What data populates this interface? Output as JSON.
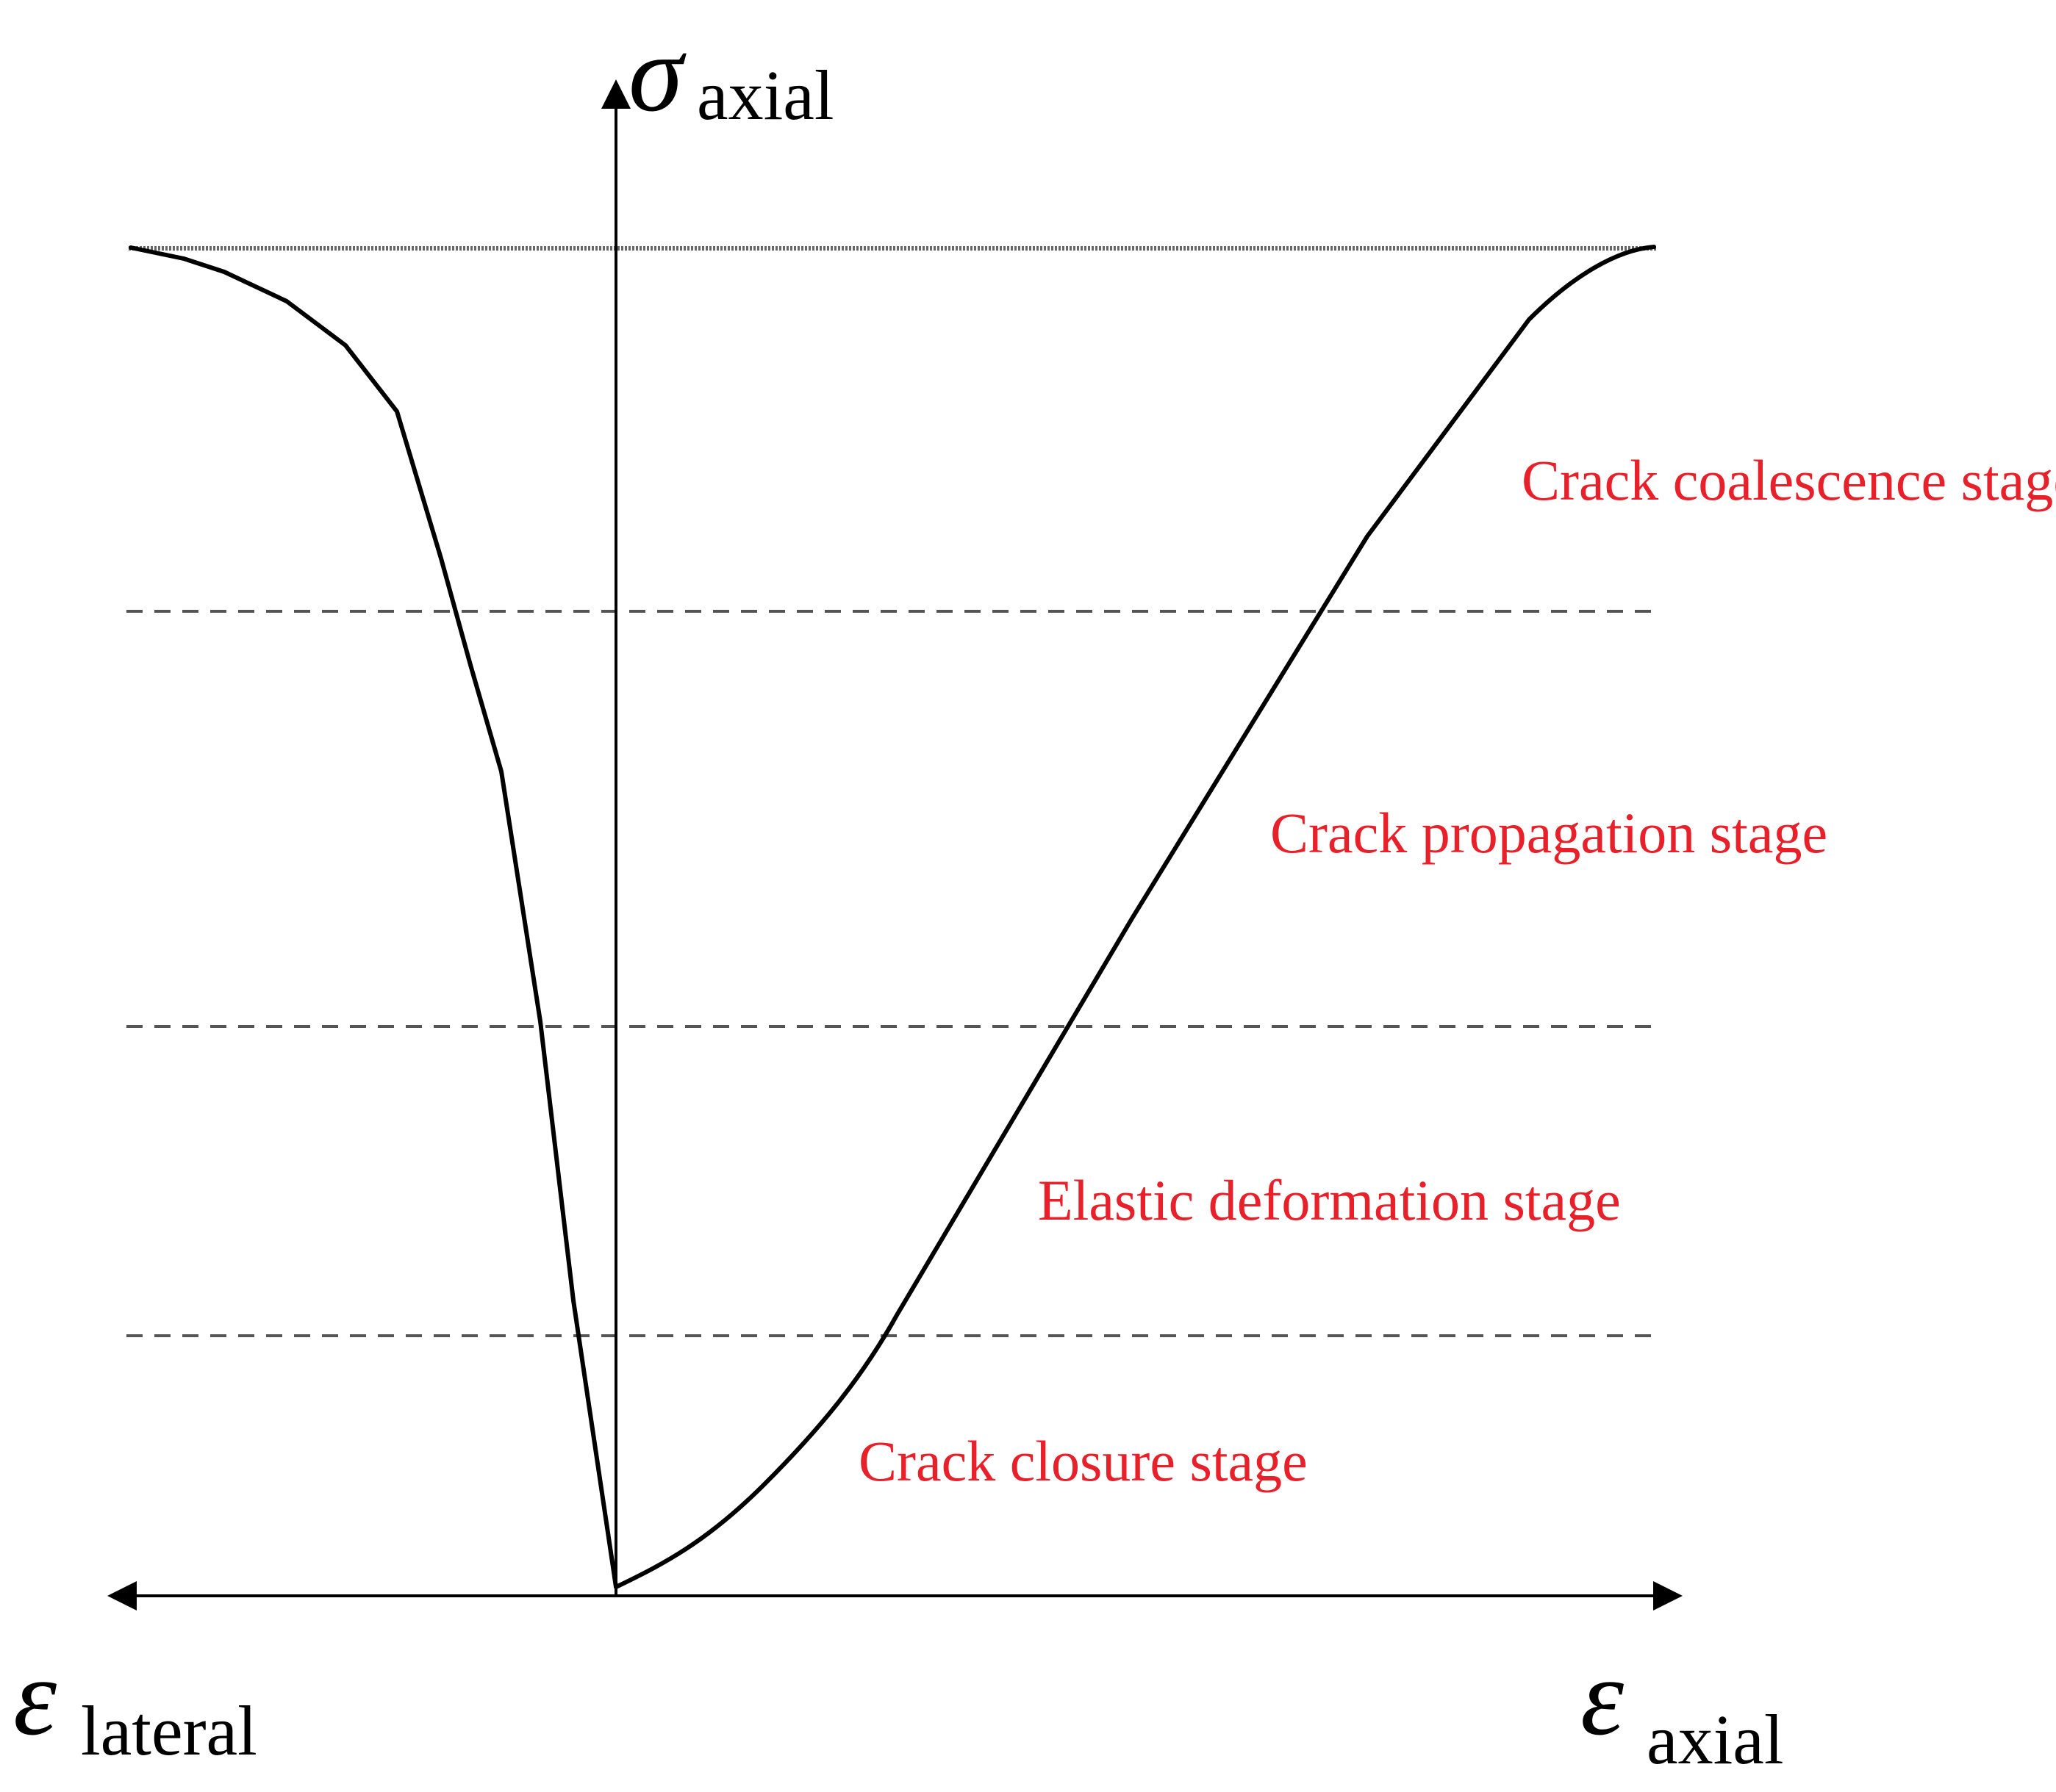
{
  "axes": {
    "vertical": {
      "symbol": "σ",
      "subscript": "axial"
    },
    "horizontal_left": {
      "symbol": "ε",
      "subscript": "lateral"
    },
    "horizontal_right": {
      "symbol": "ε",
      "subscript": "axial"
    }
  },
  "stages": [
    {
      "label": "Crack closure stage"
    },
    {
      "label": "Elastic deformation stage"
    },
    {
      "label": "Crack propagation stage"
    },
    {
      "label": "Crack coalescence stage"
    }
  ],
  "colors": {
    "stage_label": "#e8202a",
    "curve": "#000000",
    "boundary": "#555555"
  }
}
